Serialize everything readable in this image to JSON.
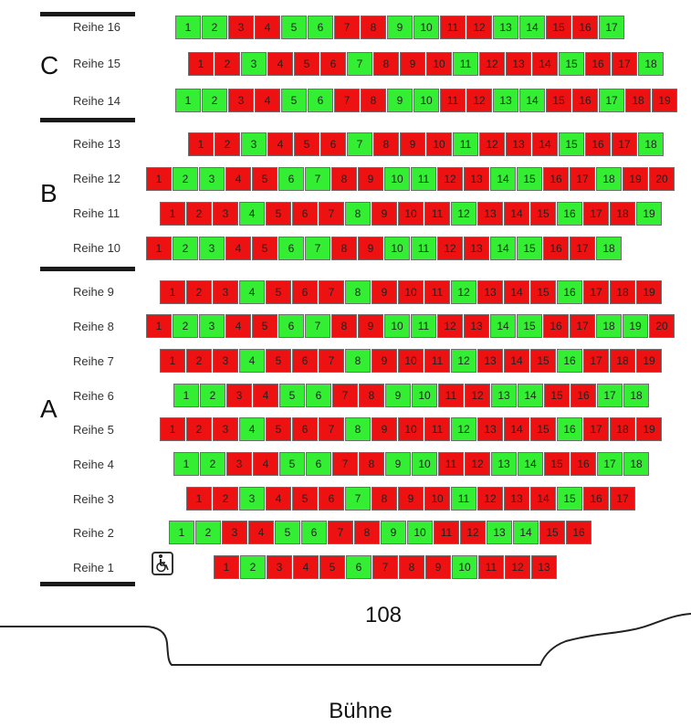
{
  "sections": [
    {
      "letter": "C"
    },
    {
      "letter": "B"
    },
    {
      "letter": "A"
    }
  ],
  "rows": [
    {
      "label": "Reihe 16",
      "seats": [
        "f",
        "f",
        "t",
        "t",
        "f",
        "f",
        "t",
        "t",
        "f",
        "f",
        "t",
        "t",
        "f",
        "f",
        "t",
        "t",
        "f"
      ]
    },
    {
      "label": "Reihe 15",
      "seats": [
        "t",
        "t",
        "f",
        "t",
        "t",
        "t",
        "f",
        "t",
        "t",
        "t",
        "f",
        "t",
        "t",
        "t",
        "f",
        "t",
        "t",
        "f"
      ]
    },
    {
      "label": "Reihe 14",
      "seats": [
        "f",
        "f",
        "t",
        "t",
        "f",
        "f",
        "t",
        "t",
        "f",
        "f",
        "t",
        "t",
        "f",
        "f",
        "t",
        "t",
        "f",
        "t",
        "t"
      ]
    },
    {
      "label": "Reihe 13",
      "seats": [
        "t",
        "t",
        "f",
        "t",
        "t",
        "t",
        "f",
        "t",
        "t",
        "t",
        "f",
        "t",
        "t",
        "t",
        "f",
        "t",
        "t",
        "f"
      ]
    },
    {
      "label": "Reihe 12",
      "seats": [
        "t",
        "f",
        "f",
        "t",
        "t",
        "f",
        "f",
        "t",
        "t",
        "f",
        "f",
        "t",
        "t",
        "f",
        "f",
        "t",
        "t",
        "f",
        "t",
        "t"
      ]
    },
    {
      "label": "Reihe 11",
      "seats": [
        "t",
        "t",
        "t",
        "f",
        "t",
        "t",
        "t",
        "f",
        "t",
        "t",
        "t",
        "f",
        "t",
        "t",
        "t",
        "f",
        "t",
        "t",
        "f"
      ]
    },
    {
      "label": "Reihe 10",
      "seats": [
        "t",
        "f",
        "f",
        "t",
        "t",
        "f",
        "f",
        "t",
        "t",
        "f",
        "f",
        "t",
        "t",
        "f",
        "f",
        "t",
        "t",
        "f"
      ]
    },
    {
      "label": "Reihe 9",
      "seats": [
        "t",
        "t",
        "t",
        "f",
        "t",
        "t",
        "t",
        "f",
        "t",
        "t",
        "t",
        "f",
        "t",
        "t",
        "t",
        "f",
        "t",
        "t",
        "t"
      ]
    },
    {
      "label": "Reihe 8",
      "seats": [
        "t",
        "f",
        "f",
        "t",
        "t",
        "f",
        "f",
        "t",
        "t",
        "f",
        "f",
        "t",
        "t",
        "f",
        "f",
        "t",
        "t",
        "f",
        "f",
        "t"
      ]
    },
    {
      "label": "Reihe 7",
      "seats": [
        "t",
        "t",
        "t",
        "f",
        "t",
        "t",
        "t",
        "f",
        "t",
        "t",
        "t",
        "f",
        "t",
        "t",
        "t",
        "f",
        "t",
        "t",
        "t"
      ]
    },
    {
      "label": "Reihe 6",
      "seats": [
        "f",
        "f",
        "t",
        "t",
        "f",
        "f",
        "t",
        "t",
        "f",
        "f",
        "t",
        "t",
        "f",
        "f",
        "t",
        "t",
        "f",
        "f"
      ]
    },
    {
      "label": "Reihe 5",
      "seats": [
        "t",
        "t",
        "t",
        "f",
        "t",
        "t",
        "t",
        "f",
        "t",
        "t",
        "t",
        "f",
        "t",
        "t",
        "t",
        "f",
        "t",
        "t",
        "t"
      ]
    },
    {
      "label": "Reihe 4",
      "seats": [
        "f",
        "f",
        "t",
        "t",
        "f",
        "f",
        "t",
        "t",
        "f",
        "f",
        "t",
        "t",
        "f",
        "f",
        "t",
        "t",
        "f",
        "f"
      ]
    },
    {
      "label": "Reihe 3",
      "seats": [
        "t",
        "t",
        "f",
        "t",
        "t",
        "t",
        "f",
        "t",
        "t",
        "t",
        "f",
        "t",
        "t",
        "t",
        "f",
        "t",
        "t"
      ]
    },
    {
      "label": "Reihe 2",
      "seats": [
        "f",
        "f",
        "t",
        "t",
        "f",
        "f",
        "t",
        "t",
        "f",
        "f",
        "t",
        "t",
        "f",
        "f",
        "t",
        "t"
      ]
    },
    {
      "label": "Reihe 1",
      "seats": [
        "t",
        "f",
        "t",
        "t",
        "t",
        "f",
        "t",
        "t",
        "t",
        "f",
        "t",
        "t",
        "t"
      ]
    }
  ],
  "capacity": "108",
  "stage_label": "Bühne",
  "icons": {
    "accessible": "wheelchair-icon"
  },
  "colors": {
    "free": "#33ee33",
    "taken": "#ee1111"
  }
}
